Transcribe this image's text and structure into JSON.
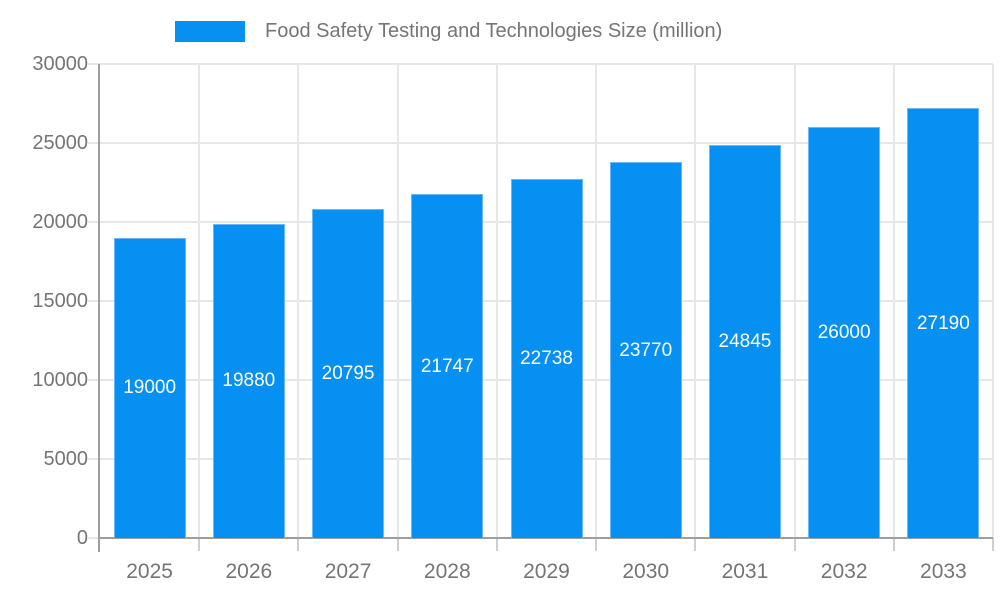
{
  "chart_data": {
    "type": "bar",
    "legend": "Food Safety Testing and Technologies Size (million)",
    "legend_position": "top",
    "categories": [
      "2025",
      "2026",
      "2027",
      "2028",
      "2029",
      "2030",
      "2031",
      "2032",
      "2033"
    ],
    "values": [
      19000,
      19880,
      20795,
      21747,
      22738,
      23770,
      24845,
      26000,
      27190
    ],
    "value_labels": [
      "19000",
      "19880",
      "20795",
      "21747",
      "22738",
      "23770",
      "24845",
      "26000",
      "27190"
    ],
    "xlabel": "",
    "ylabel": "",
    "ylim": [
      0,
      30000
    ],
    "yticks": [
      0,
      5000,
      10000,
      15000,
      20000,
      25000,
      30000
    ],
    "grid": true,
    "colors": {
      "bar": "#0590f2",
      "bar_border": "#6ab6f7",
      "bar_label": "#ffffff",
      "grid": "#e7e7e7",
      "axis": "#9e9e9e",
      "tick": "#cfcfcf",
      "text": "#757575",
      "background": "#ffffff"
    }
  }
}
